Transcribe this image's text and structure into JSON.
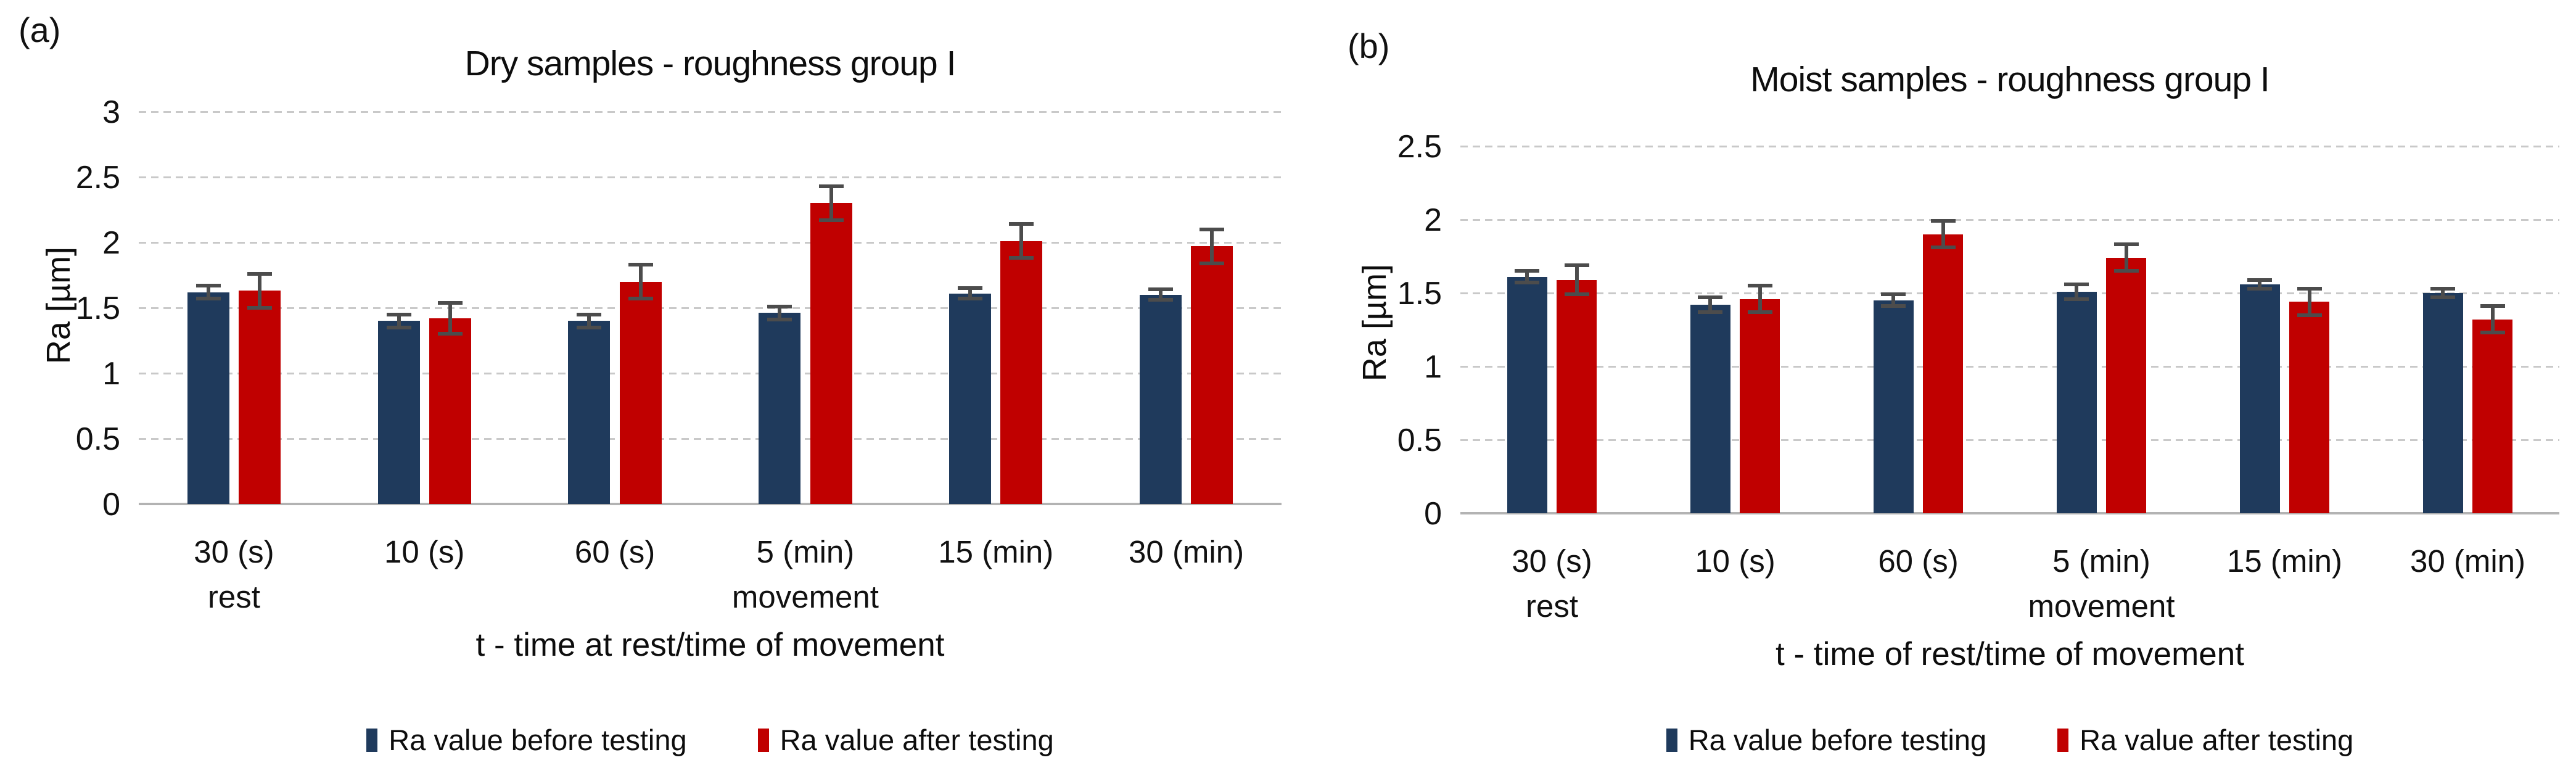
{
  "figure": {
    "panels": [
      {
        "corner_label": "(a)"
      },
      {
        "corner_label": "(b)"
      }
    ]
  },
  "chart_data": [
    {
      "type": "bar",
      "title": "Dry samples - roughness group I",
      "categories": [
        "30 (s)",
        "10 (s)",
        "60 (s)",
        "5 (min)",
        "15 (min)",
        "30 (min)"
      ],
      "category_sublabels": [
        "rest",
        "",
        "",
        "movement",
        "",
        ""
      ],
      "xlabel": "t - time at rest/time of movement",
      "ylabel": "Ra [µm]",
      "ylim": [
        0,
        3
      ],
      "ytick_step": 0.5,
      "grid": true,
      "legend_position": "bottom",
      "error_bar_color": "#4c4c4c",
      "series": [
        {
          "name": "Ra value before testing",
          "color": "#1f3a5c",
          "values": [
            1.62,
            1.4,
            1.4,
            1.46,
            1.61,
            1.6
          ],
          "errors": [
            0.05,
            0.05,
            0.05,
            0.05,
            0.04,
            0.04
          ]
        },
        {
          "name": "Ra value after testing",
          "color": "#c00000",
          "values": [
            1.63,
            1.42,
            1.7,
            2.3,
            2.01,
            1.97
          ],
          "errors": [
            0.13,
            0.12,
            0.13,
            0.13,
            0.13,
            0.13
          ]
        }
      ]
    },
    {
      "type": "bar",
      "title": "Moist samples - roughness group I",
      "categories": [
        "30 (s)",
        "10 (s)",
        "60 (s)",
        "5 (min)",
        "15 (min)",
        "30 (min)"
      ],
      "category_sublabels": [
        "rest",
        "",
        "",
        "movement",
        "",
        ""
      ],
      "xlabel": "t - time of rest/time of movement",
      "ylabel": "Ra [µm]",
      "ylim": [
        0,
        2.5
      ],
      "ytick_step": 0.5,
      "grid": true,
      "legend_position": "bottom",
      "error_bar_color": "#4c4c4c",
      "series": [
        {
          "name": "Ra value before testing",
          "color": "#1f3a5c",
          "values": [
            1.61,
            1.42,
            1.45,
            1.51,
            1.56,
            1.5
          ],
          "errors": [
            0.04,
            0.05,
            0.04,
            0.05,
            0.03,
            0.03
          ]
        },
        {
          "name": "Ra value after testing",
          "color": "#c00000",
          "values": [
            1.59,
            1.46,
            1.9,
            1.74,
            1.44,
            1.32
          ],
          "errors": [
            0.1,
            0.09,
            0.09,
            0.09,
            0.09,
            0.09
          ]
        }
      ]
    }
  ]
}
